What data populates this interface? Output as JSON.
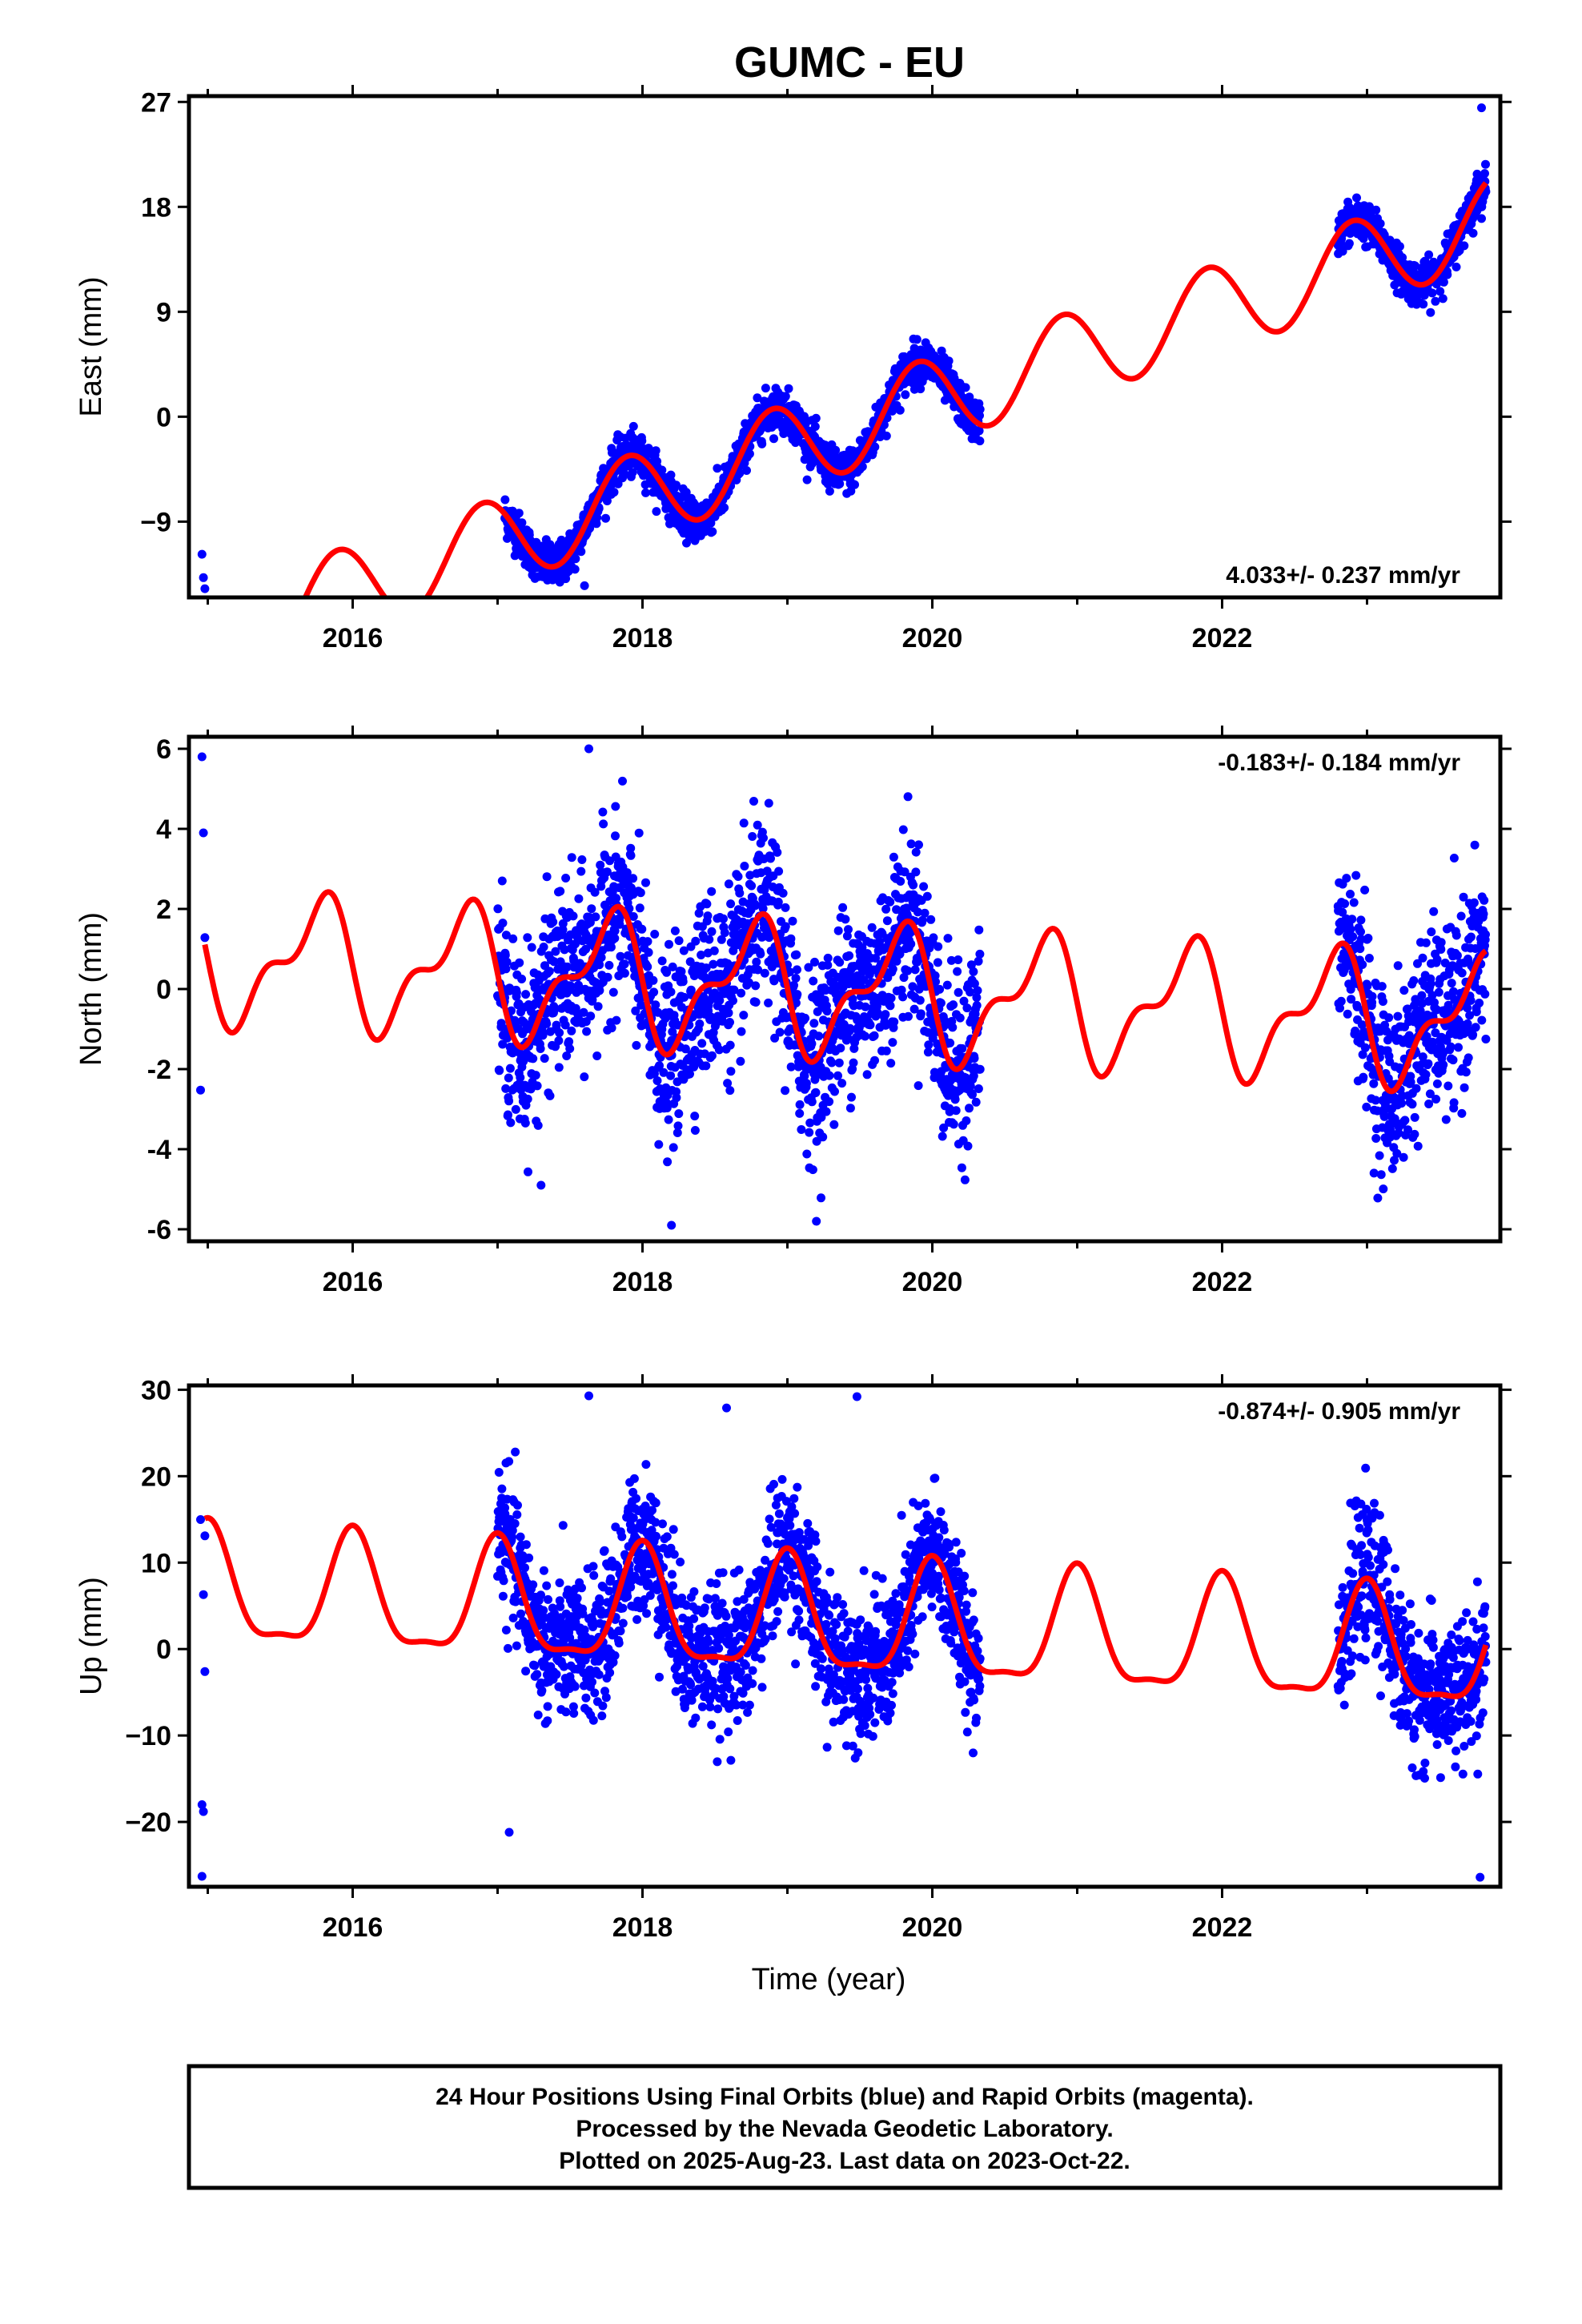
{
  "title": "GUMC - EU",
  "colors": {
    "points": "#0000ff",
    "fit": "#ff0000",
    "frame": "#000000"
  },
  "footer": {
    "line1": "24 Hour Positions Using Final Orbits (blue) and Rapid Orbits (magenta).",
    "line2": "Processed by the Nevada Geodetic Laboratory.",
    "line3": "Plotted on 2025-Aug-23. Last data on 2023-Oct-22."
  },
  "chart_data": [
    {
      "type": "scatter",
      "name": "east",
      "ylabel": "East (mm)",
      "xlabel": "",
      "xlim": [
        2014.87,
        2023.92
      ],
      "ylim": [
        -15.5,
        27.5
      ],
      "xticks": [
        2016,
        2018,
        2020,
        2022
      ],
      "yticks": [
        -9,
        0,
        9,
        18,
        27
      ],
      "rate_text": "4.033+/- 0.237 mm/yr",
      "rate_position": "bottom-right",
      "fit": {
        "intercept": -8.7,
        "epoch": 2017.5,
        "rate": 4.033,
        "sin_amp": 2.2,
        "cos_amp": -3.0,
        "sin2_amp": 0.0,
        "cos2_amp": 0.0
      },
      "data_segments": [
        [
          2014.95,
          2015.0,
          0.03
        ],
        [
          2017.05,
          2020.33,
          0.002
        ],
        [
          2022.8,
          2023.82,
          0.002
        ]
      ],
      "noise": 0.9,
      "outliers": [
        [
          2014.96,
          -11.8
        ],
        [
          2014.97,
          -13.8
        ],
        [
          2017.6,
          -14.5
        ],
        [
          2023.79,
          26.5
        ]
      ]
    },
    {
      "type": "scatter",
      "name": "north",
      "ylabel": "North (mm)",
      "xlabel": "",
      "xlim": [
        2014.87,
        2023.92
      ],
      "ylim": [
        -6.3,
        6.3
      ],
      "xticks": [
        2016,
        2018,
        2020,
        2022
      ],
      "yticks": [
        -6,
        -4,
        -2,
        0,
        2,
        4,
        6
      ],
      "rate_text": "-0.183+/- 0.184 mm/yr",
      "rate_position": "top-right",
      "fit": {
        "intercept": 0.3,
        "epoch": 2017.5,
        "rate": -0.183,
        "sin_amp": 1.4,
        "cos_amp": 0.0,
        "sin2_amp": -0.7,
        "cos2_amp": 0.0
      },
      "data_segments": [
        [
          2014.95,
          2015.0,
          0.03
        ],
        [
          2017.0,
          2020.33,
          0.002
        ],
        [
          2022.8,
          2023.82,
          0.002
        ]
      ],
      "noise": 1.1,
      "outliers": [
        [
          2014.96,
          5.8
        ],
        [
          2014.97,
          3.9
        ],
        [
          2017.63,
          6.0
        ],
        [
          2018.2,
          -5.9
        ],
        [
          2019.2,
          -5.8
        ],
        [
          2017.3,
          -4.9
        ]
      ]
    },
    {
      "type": "scatter",
      "name": "up",
      "ylabel": "Up (mm)",
      "xlabel": "Time (year)",
      "xlim": [
        2014.87,
        2023.92
      ],
      "ylim": [
        -27.5,
        30.5
      ],
      "xticks": [
        2016,
        2018,
        2020,
        2022
      ],
      "yticks": [
        -20,
        -10,
        0,
        10,
        20,
        30
      ],
      "rate_text": "-0.874+/- 0.905 mm/yr",
      "rate_position": "top-right",
      "fit": {
        "intercept": 4.5,
        "epoch": 2017.5,
        "rate": -0.874,
        "sin_amp": 0.0,
        "cos_amp": -6.5,
        "sin2_amp": 0.0,
        "cos2_amp": 2.0
      },
      "data_segments": [
        [
          2014.95,
          2015.0,
          0.03
        ],
        [
          2017.0,
          2020.33,
          0.002
        ],
        [
          2022.8,
          2023.82,
          0.002
        ]
      ],
      "noise": 4.0,
      "outliers": [
        [
          2014.96,
          -26.3
        ],
        [
          2014.96,
          -18.0
        ],
        [
          2014.97,
          -18.8
        ],
        [
          2014.97,
          6.3
        ],
        [
          2014.98,
          -2.6
        ],
        [
          2017.08,
          -21.2
        ],
        [
          2017.63,
          29.3
        ],
        [
          2018.58,
          27.9
        ],
        [
          2019.48,
          29.2
        ],
        [
          2023.78,
          -26.4
        ]
      ]
    }
  ]
}
